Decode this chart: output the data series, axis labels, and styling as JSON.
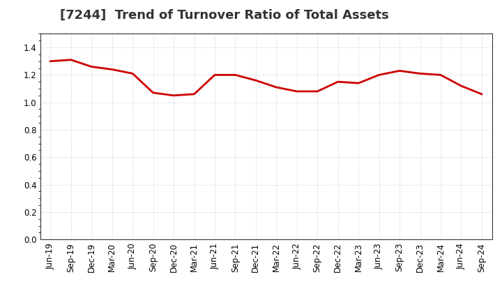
{
  "title": "[7244]  Trend of Turnover Ratio of Total Assets",
  "x_labels": [
    "Jun-19",
    "Sep-19",
    "Dec-19",
    "Mar-20",
    "Jun-20",
    "Sep-20",
    "Dec-20",
    "Mar-21",
    "Jun-21",
    "Sep-21",
    "Dec-21",
    "Mar-22",
    "Jun-22",
    "Sep-22",
    "Dec-22",
    "Mar-23",
    "Jun-23",
    "Sep-23",
    "Dec-23",
    "Mar-24",
    "Jun-24",
    "Sep-24"
  ],
  "y_values": [
    1.3,
    1.31,
    1.26,
    1.24,
    1.21,
    1.07,
    1.05,
    1.06,
    1.2,
    1.2,
    1.16,
    1.11,
    1.08,
    1.08,
    1.15,
    1.14,
    1.2,
    1.23,
    1.21,
    1.2,
    1.12,
    1.06
  ],
  "line_color": "#cc0000",
  "line_width": 2.0,
  "ylim": [
    0.0,
    1.5
  ],
  "yticks": [
    0.0,
    0.2,
    0.4,
    0.6,
    0.8,
    1.0,
    1.2,
    1.4
  ],
  "background_color": "#ffffff",
  "grid_color": "#999999",
  "title_fontsize": 13,
  "tick_fontsize": 8.5
}
